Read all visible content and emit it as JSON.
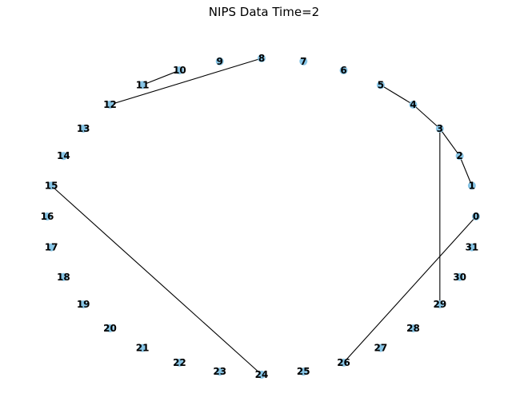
{
  "title": "NIPS Data Time=2",
  "node_color": "#87ceeb",
  "edge_color": "#000000",
  "nodes": [
    "0",
    "1",
    "2",
    "3",
    "4",
    "5",
    "6",
    "7",
    "8",
    "9",
    "10",
    "11",
    "12",
    "13",
    "14",
    "15",
    "16",
    "17",
    "18",
    "19",
    "20",
    "21",
    "22",
    "23",
    "24",
    "25",
    "26",
    "27",
    "28",
    "29",
    "30",
    "31"
  ],
  "edges": [
    [
      "1",
      "2"
    ],
    [
      "2",
      "3"
    ],
    [
      "3",
      "4"
    ],
    [
      "4",
      "5"
    ],
    [
      "3",
      "29"
    ],
    [
      "0",
      "26"
    ],
    [
      "8",
      "12"
    ],
    [
      "10",
      "11"
    ],
    [
      "15",
      "24"
    ]
  ]
}
